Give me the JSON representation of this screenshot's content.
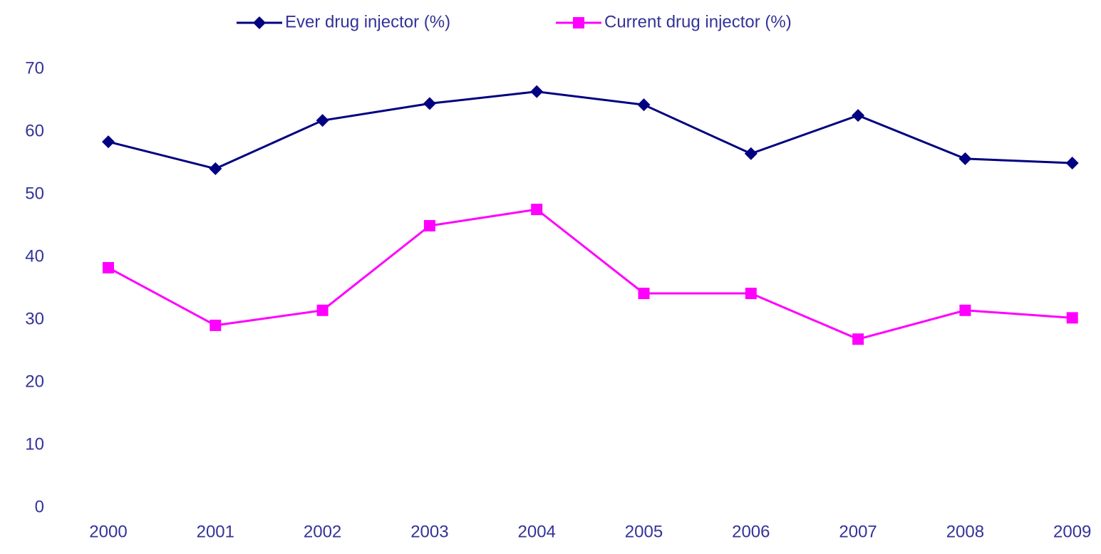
{
  "chart_data": {
    "type": "line",
    "categories": [
      "2000",
      "2001",
      "2002",
      "2003",
      "2004",
      "2005",
      "2006",
      "2007",
      "2008",
      "2009"
    ],
    "series": [
      {
        "name": "Ever drug injector (%)",
        "color": "#000080",
        "marker": "diamond",
        "values": [
          58.4,
          54.1,
          61.8,
          64.5,
          66.4,
          64.3,
          56.5,
          62.6,
          55.7,
          55.0
        ]
      },
      {
        "name": "Current drug injector (%)",
        "color": "#ff00ff",
        "marker": "square",
        "values": [
          38.3,
          29.1,
          31.5,
          45.0,
          47.6,
          34.2,
          34.2,
          26.9,
          31.5,
          30.3
        ]
      }
    ],
    "ylim": [
      0,
      70
    ],
    "yticks": [
      0,
      10,
      20,
      30,
      40,
      50,
      60,
      70
    ],
    "grid": false,
    "legend": "top"
  }
}
